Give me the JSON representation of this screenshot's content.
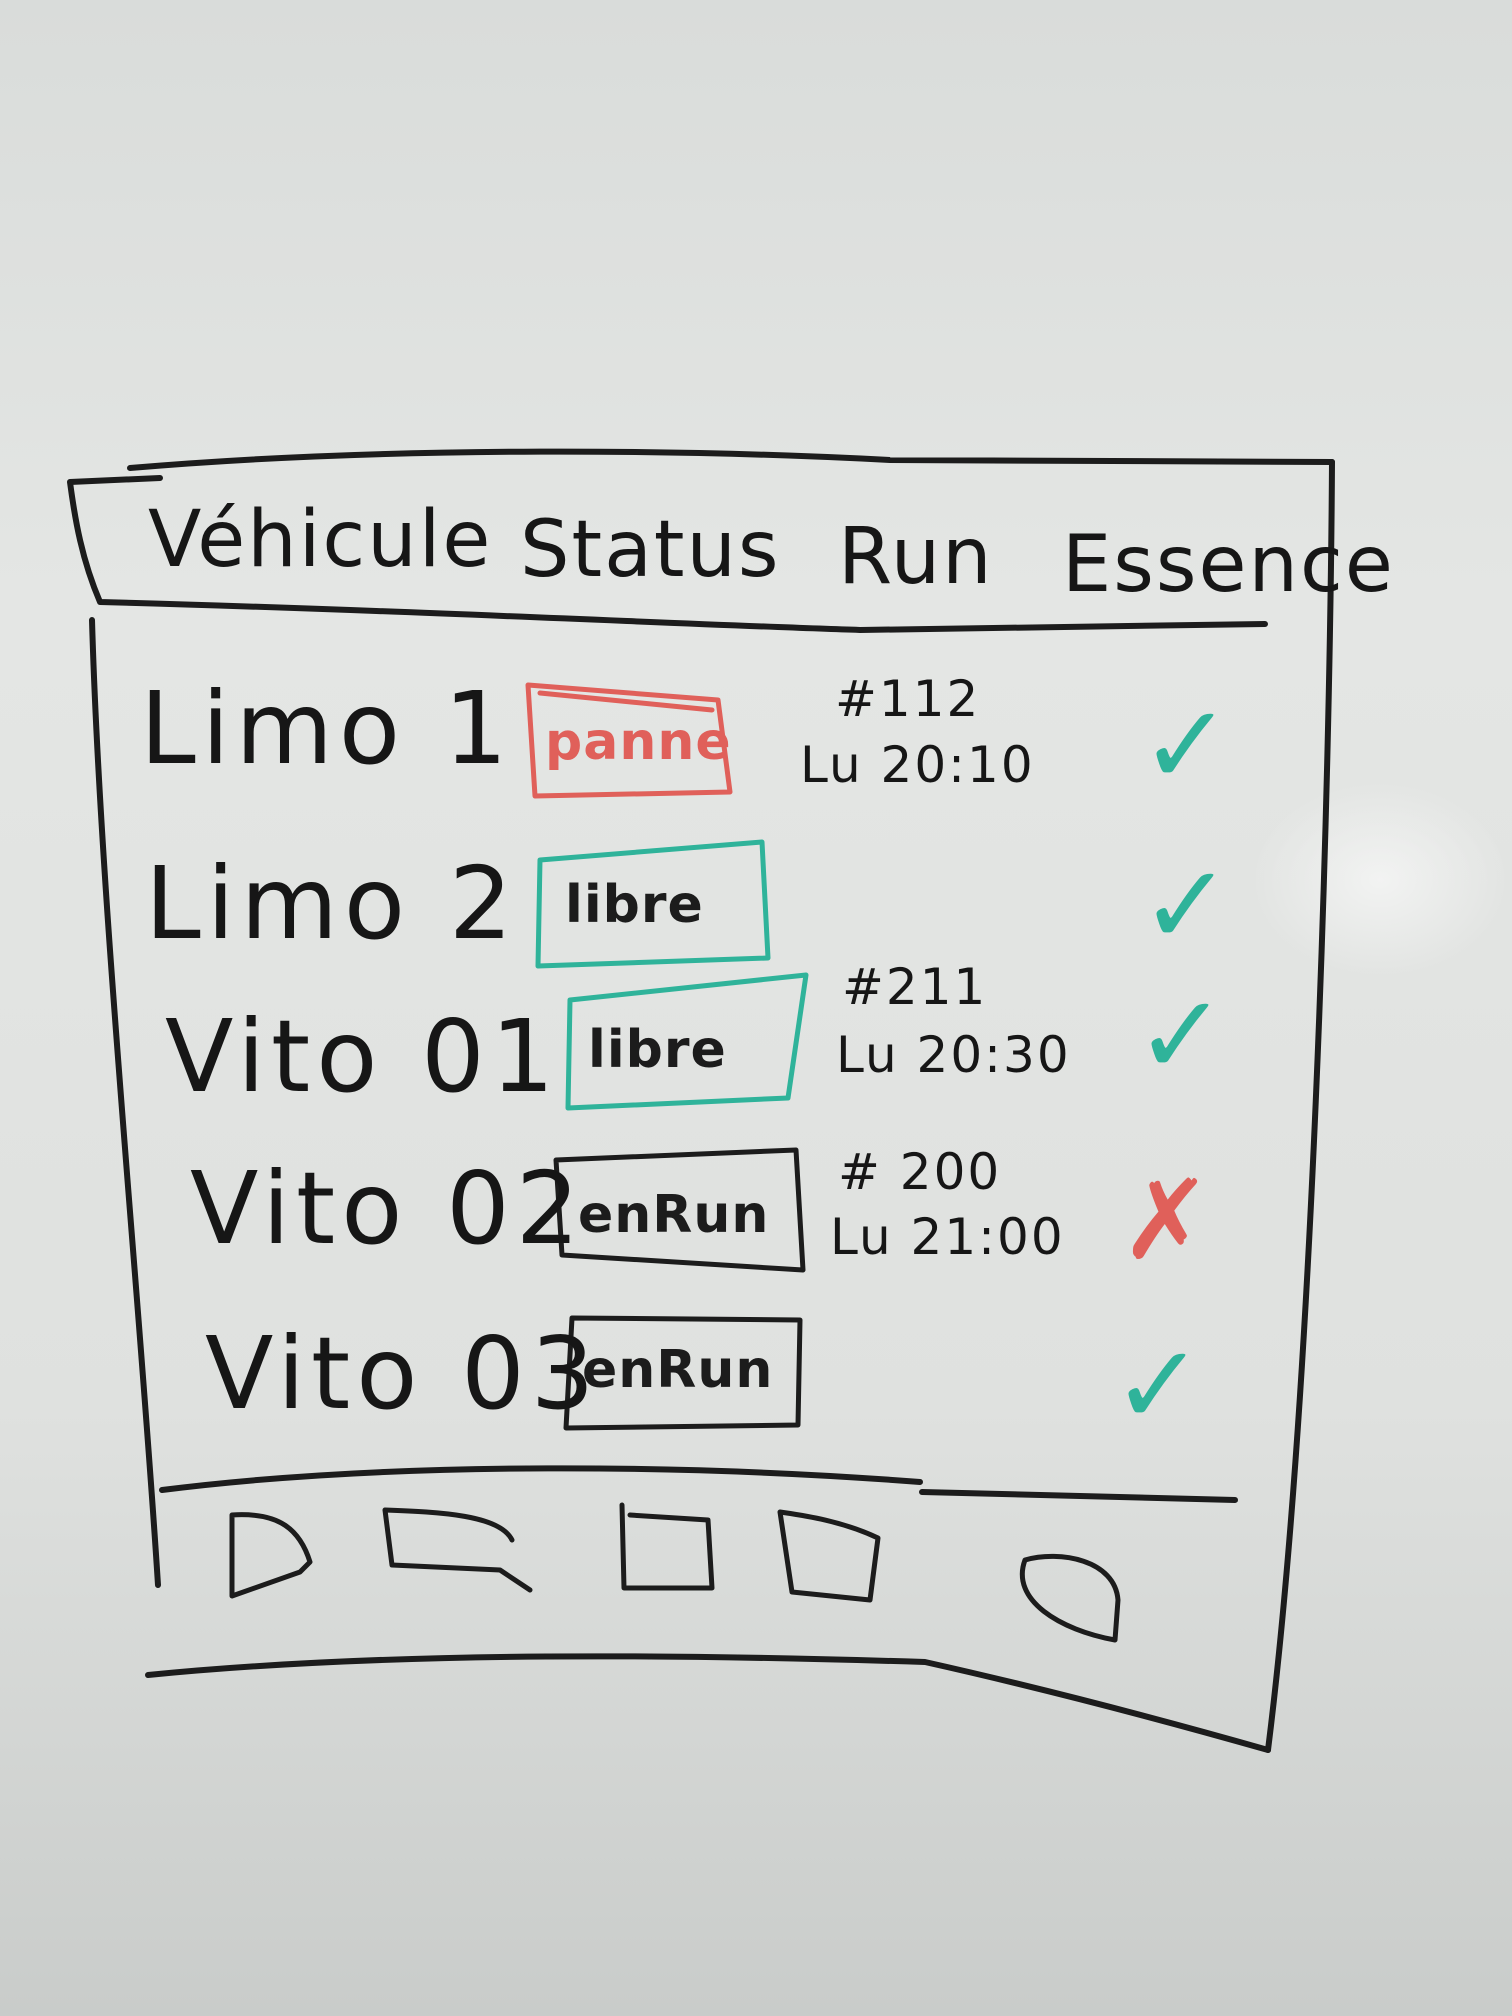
{
  "header": {
    "columns": [
      "Véhicule",
      "Status",
      "Run",
      "Essence"
    ]
  },
  "rows": [
    {
      "vehicle": "Limo 1",
      "status": "panne",
      "run_number": "#112",
      "run_time": "Lu 20:10",
      "essence": "✓"
    },
    {
      "vehicle": "Limo 2",
      "status": "libre",
      "run_number": "",
      "run_time": "",
      "essence": "✓"
    },
    {
      "vehicle": "Vito 01",
      "status": "libre",
      "run_number": "#211",
      "run_time": "Lu 20:30",
      "essence": "✓"
    },
    {
      "vehicle": "Vito 02",
      "status": "enRun",
      "run_number": "# 200",
      "run_time": "Lu 21:00",
      "essence": "✗"
    },
    {
      "vehicle": "Vito 03",
      "status": "enRun",
      "run_number": "",
      "run_time": "",
      "essence": "✓"
    }
  ],
  "status_colors": {
    "panne": "#e0605a",
    "libre": "#2fb39a",
    "enRun": "#1c1c1c"
  },
  "essence_colors": {
    "ok": "#2fb39a",
    "no": "#e0605a"
  },
  "footer_icons": [
    "tab-icon",
    "tab-icon",
    "tab-icon",
    "tab-icon",
    "tab-icon"
  ]
}
